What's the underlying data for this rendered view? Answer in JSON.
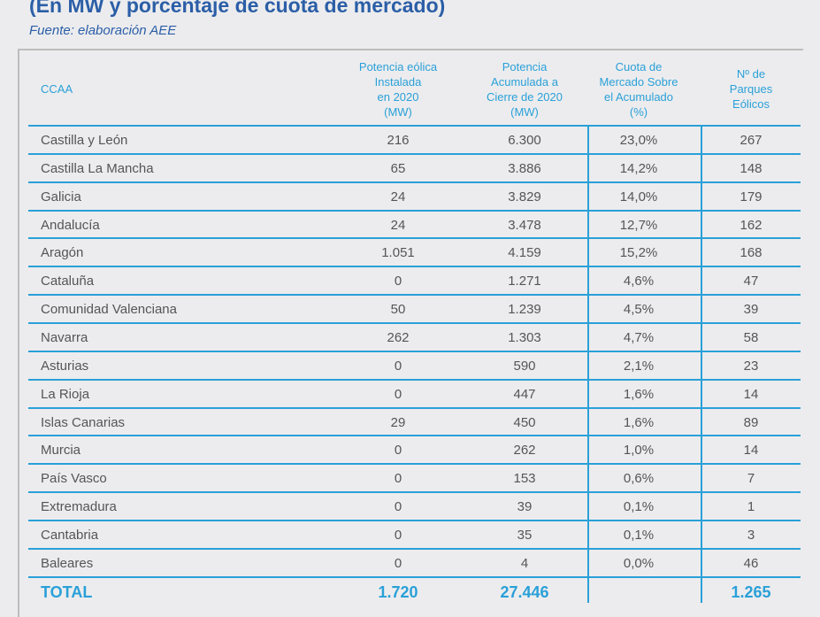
{
  "title": "(En MW y porcentaje de cuota de mercado)",
  "source": "Fuente: elaboración AEE",
  "headers": [
    "CCAA",
    "Potencia eólica Instalada en 2020 (MW)",
    "Potencia Acumulada a Cierre de 2020 (MW)",
    "Cuota de Mercado Sobre el Acumulado (%)",
    "Nº de Parques Eólicos"
  ],
  "header_lines": [
    [
      "CCAA"
    ],
    [
      "Potencia eólica",
      "Instalada",
      "en 2020",
      "(MW)"
    ],
    [
      "Potencia",
      "Acumulada a",
      "Cierre de 2020",
      "(MW)"
    ],
    [
      "Cuota de",
      "Mercado Sobre",
      "el Acumulado",
      "(%)"
    ],
    [
      "Nº de",
      "Parques",
      "Eólicos"
    ]
  ],
  "rows": [
    [
      "Castilla y León",
      "216",
      "6.300",
      "23,0%",
      "267"
    ],
    [
      "Castilla La Mancha",
      "65",
      "3.886",
      "14,2%",
      "148"
    ],
    [
      "Galicia",
      "24",
      "3.829",
      "14,0%",
      "179"
    ],
    [
      "Andalucía",
      "24",
      "3.478",
      "12,7%",
      "162"
    ],
    [
      "Aragón",
      "1.051",
      "4.159",
      "15,2%",
      "168"
    ],
    [
      "Cataluña",
      "0",
      "1.271",
      "4,6%",
      "47"
    ],
    [
      "Comunidad Valenciana",
      "50",
      "1.239",
      "4,5%",
      "39"
    ],
    [
      "Navarra",
      "262",
      "1.303",
      "4,7%",
      "58"
    ],
    [
      "Asturias",
      "0",
      "590",
      "2,1%",
      "23"
    ],
    [
      "La Rioja",
      "0",
      "447",
      "1,6%",
      "14"
    ],
    [
      "Islas Canarias",
      "29",
      "450",
      "1,6%",
      "89"
    ],
    [
      "Murcia",
      "0",
      "262",
      "1,0%",
      "14"
    ],
    [
      "País Vasco",
      "0",
      "153",
      "0,6%",
      "7"
    ],
    [
      "Extremadura",
      "0",
      "39",
      "0,1%",
      "1"
    ],
    [
      "Cantabria",
      "0",
      "35",
      "0,1%",
      "3"
    ],
    [
      "Baleares",
      "0",
      "4",
      "0,0%",
      "46"
    ]
  ],
  "total": [
    "TOTAL",
    "1.720",
    "27.446",
    "",
    "1.265"
  ]
}
